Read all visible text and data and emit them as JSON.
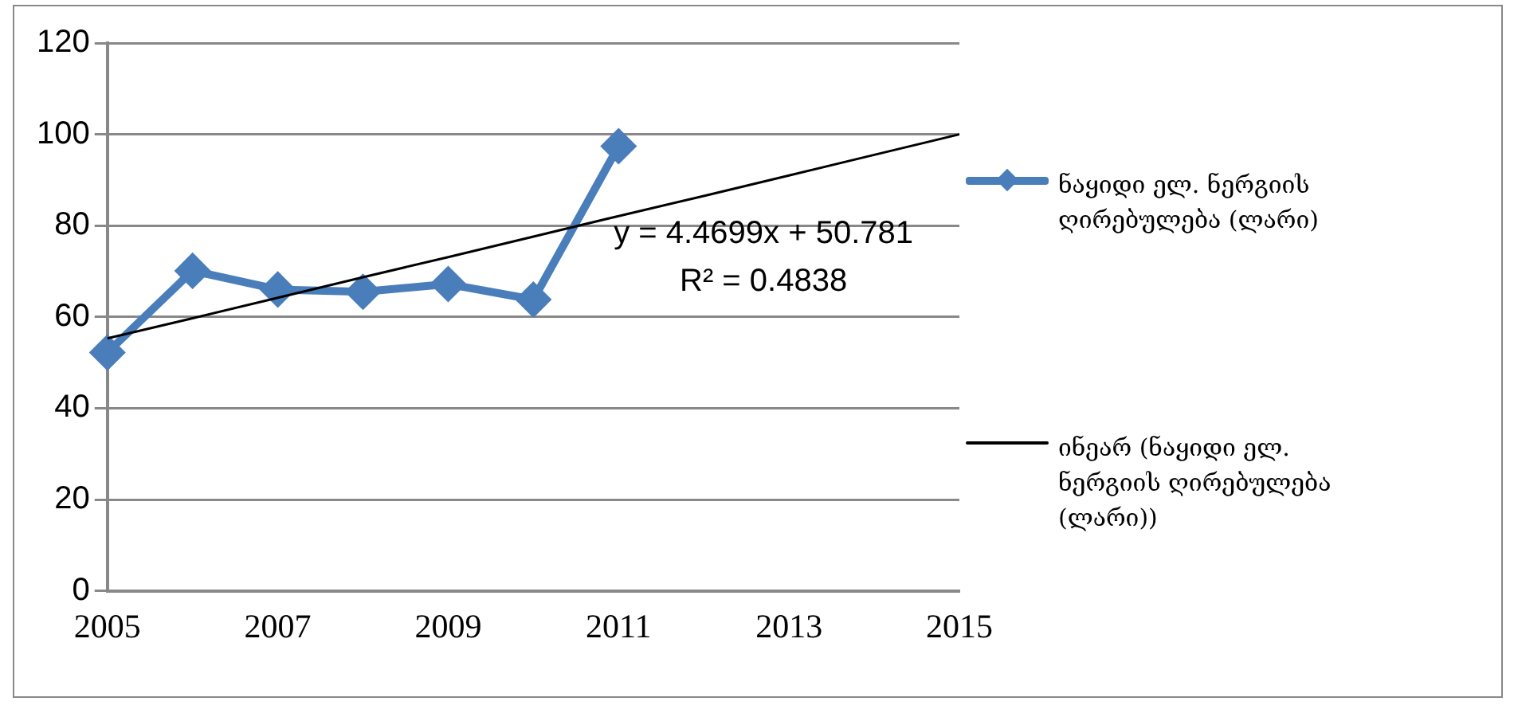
{
  "chart_data": {
    "type": "line",
    "categories": [
      "2005",
      null,
      "2007",
      null,
      "2009",
      null,
      "2011",
      null,
      "2013",
      null,
      "2015"
    ],
    "series": [
      {
        "name": "ნაყიდი ელ. ნერგიის ღირებულება (ლარი)",
        "color": "#4a7ebb",
        "marker": "diamond",
        "values": [
          52.2,
          70.1,
          66,
          65.5,
          67.2,
          63.8,
          97.4,
          null,
          null,
          null,
          null
        ]
      },
      {
        "name": "ინეარ (ნაყიდი ელ. ნერგიის ღირებულება (ლარი))",
        "color": "#000000",
        "marker": "none",
        "values": [
          55.3,
          59.7,
          64.2,
          68.7,
          73.1,
          77.6,
          82.1,
          86.5,
          91,
          95.5,
          100
        ]
      }
    ],
    "ylim": [
      0,
      120
    ],
    "yticks": [
      0,
      20,
      40,
      60,
      80,
      100,
      120
    ],
    "grid": "y",
    "legend": "right",
    "annotations": [
      "y = 4.4699x + 50.781",
      "R² = 0.4838"
    ]
  }
}
